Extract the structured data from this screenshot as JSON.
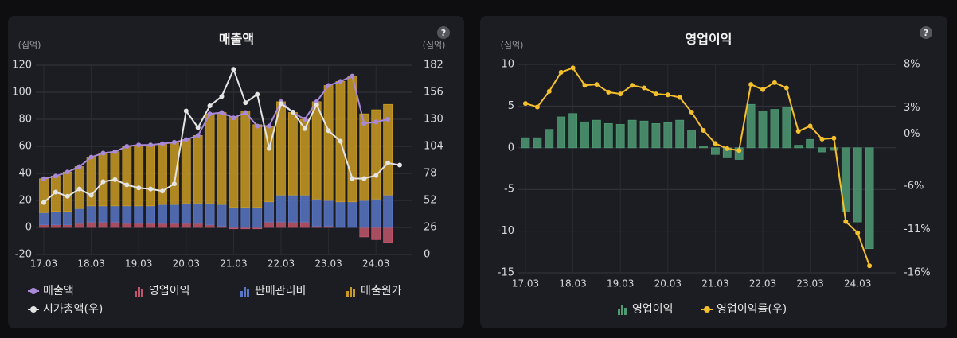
{
  "chart_data": [
    {
      "type": "combo",
      "title": "매출액",
      "help": "?",
      "y_unit": "(십억)",
      "y2_unit": "(십억)",
      "categories": [
        "17.03",
        null,
        null,
        null,
        "18.03",
        null,
        null,
        null,
        "19.03",
        null,
        null,
        null,
        "20.03",
        null,
        null,
        null,
        "21.03",
        null,
        null,
        null,
        "22.03",
        null,
        null,
        null,
        "23.03",
        null,
        null,
        null,
        "24.03",
        null,
        null
      ],
      "ylim": [
        -20,
        120
      ],
      "yticks": [
        -20,
        0,
        20,
        40,
        60,
        80,
        100,
        120
      ],
      "y2lim": [
        0,
        182
      ],
      "y2ticks": [
        0,
        26,
        52,
        78,
        104,
        130,
        156,
        182
      ],
      "grid": true,
      "series": [
        {
          "name": "매출액",
          "kind": "line",
          "color": "#a98ad8",
          "values": [
            36,
            38,
            41,
            45,
            52,
            55,
            56,
            60,
            61,
            61,
            62,
            63,
            65,
            68,
            84,
            85,
            81,
            85,
            75,
            75,
            93,
            85,
            80,
            93,
            105,
            108,
            112,
            77,
            78,
            80,
            null
          ]
        },
        {
          "name": "영업이익",
          "kind": "bar",
          "color": "#c0566b",
          "values": [
            2,
            2,
            2,
            3,
            4,
            4,
            4,
            3,
            3,
            3,
            3,
            3,
            3,
            3,
            2,
            1,
            -1,
            -1,
            -1,
            4,
            4,
            4,
            4,
            1,
            1,
            0,
            0,
            -7,
            -9,
            -11,
            null
          ]
        },
        {
          "name": "판매관리비",
          "kind": "bar",
          "color": "#5876c4",
          "values": [
            9,
            10,
            10,
            11,
            12,
            12,
            12,
            13,
            13,
            13,
            14,
            14,
            15,
            15,
            16,
            16,
            15,
            15,
            15,
            15,
            20,
            20,
            20,
            20,
            19,
            19,
            19,
            20,
            21,
            24,
            null
          ]
        },
        {
          "name": "매출원가",
          "kind": "bar",
          "color": "#c99a22",
          "values": [
            25,
            26,
            29,
            31,
            36,
            39,
            40,
            44,
            45,
            45,
            45,
            46,
            47,
            50,
            66,
            68,
            67,
            71,
            61,
            56,
            69,
            61,
            56,
            72,
            85,
            89,
            93,
            64,
            66,
            67,
            null
          ]
        },
        {
          "name": "시가총액(우)",
          "kind": "line",
          "axis": "y2",
          "color": "#e4e4e4",
          "values": [
            50,
            60,
            56,
            63,
            57,
            70,
            72,
            67,
            64,
            63,
            61,
            68,
            138,
            122,
            143,
            152,
            178,
            146,
            154,
            102,
            145,
            137,
            121,
            144,
            119,
            109,
            73,
            73,
            76,
            88,
            86
          ]
        }
      ]
    },
    {
      "type": "combo",
      "title": "영업이익",
      "help": "?",
      "y_unit": "(십억)",
      "categories": [
        "17.03",
        null,
        null,
        null,
        "18.03",
        null,
        null,
        null,
        "19.03",
        null,
        null,
        null,
        "20.03",
        null,
        null,
        null,
        "21.03",
        null,
        null,
        null,
        "22.03",
        null,
        null,
        null,
        "23.03",
        null,
        null,
        null,
        "24.03",
        null
      ],
      "ylim": [
        -15,
        10
      ],
      "yticks": [
        -15,
        -10,
        -5,
        0,
        5,
        10
      ],
      "y2lim": [
        -16,
        8
      ],
      "y2ticks": [
        {
          "value": 8,
          "label": "8%"
        },
        {
          "value": 3,
          "label": "3%"
        },
        {
          "value": 0,
          "label": "0%"
        },
        {
          "value": -6,
          "label": "-6%"
        },
        {
          "value": -11,
          "label": "-11%"
        },
        {
          "value": -16,
          "label": "-16%"
        }
      ],
      "grid": true,
      "series": [
        {
          "name": "영업이익",
          "kind": "bar",
          "color": "#4e9a73",
          "values": [
            1.2,
            1.2,
            2.2,
            3.7,
            4.1,
            3.1,
            3.3,
            2.9,
            2.8,
            3.3,
            3.2,
            2.9,
            3.0,
            3.3,
            2.1,
            0.2,
            -0.8,
            -1.2,
            -1.4,
            5.2,
            4.4,
            4.6,
            4.8,
            0.3,
            1.0,
            -0.5,
            -0.3,
            -7.7,
            -8.9,
            -12.1
          ]
        },
        {
          "name": "영업이익률(우)",
          "kind": "line",
          "axis": "y2",
          "color": "#f5c02c",
          "values": [
            3.5,
            3.1,
            4.9,
            7.1,
            7.6,
            5.6,
            5.7,
            4.8,
            4.6,
            5.6,
            5.3,
            4.6,
            4.5,
            4.2,
            2.5,
            0.4,
            -1.1,
            -1.7,
            -1.9,
            5.7,
            5.1,
            5.9,
            5.3,
            0.3,
            0.9,
            -0.6,
            -0.5,
            -10.1,
            -11.4,
            -15.2
          ]
        }
      ]
    }
  ]
}
